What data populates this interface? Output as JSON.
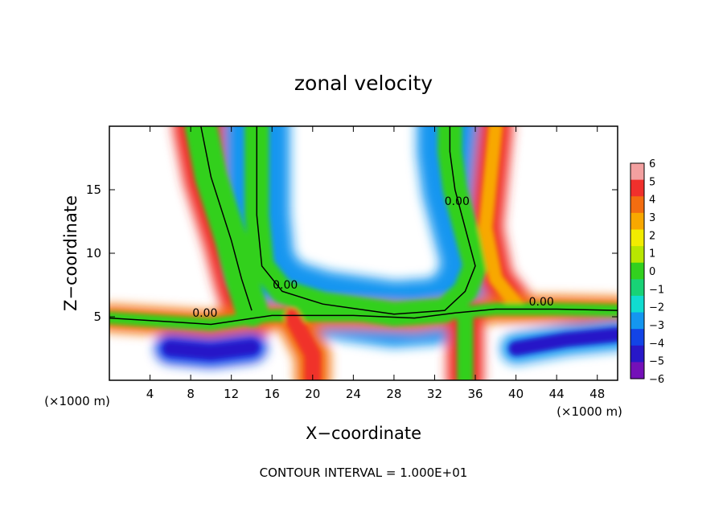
{
  "chart_data": {
    "type": "heatmap",
    "title": "zonal velocity",
    "xlabel": "X−coordinate",
    "ylabel": "Z−coordinate",
    "x_unit_label": "(×1000 m)",
    "y_unit_label": "(×1000 m)",
    "xlim": [
      0,
      50
    ],
    "ylim": [
      0,
      20
    ],
    "x_ticks": [
      4,
      8,
      12,
      16,
      20,
      24,
      28,
      32,
      36,
      40,
      44,
      48
    ],
    "y_ticks": [
      5,
      10,
      15
    ],
    "footer": "CONTOUR INTERVAL = 1.000E+01",
    "contour_labels": [
      {
        "text": "0.00",
        "x": 17.3,
        "y": 7.2
      },
      {
        "text": "0.00",
        "x": 9.4,
        "y": 5.0
      },
      {
        "text": "0.00",
        "x": 34.2,
        "y": 13.8
      },
      {
        "text": "0.00",
        "x": 42.5,
        "y": 5.9
      }
    ],
    "colorbar": {
      "levels": [
        "6",
        "5",
        "4",
        "3",
        "2",
        "1",
        "0",
        "−1",
        "−2",
        "−3",
        "−4",
        "−5",
        "−6"
      ],
      "colors": [
        "#f3a0a0",
        "#f0302c",
        "#f36d10",
        "#f8a800",
        "#f2ec00",
        "#b8e600",
        "#32d01e",
        "#18d276",
        "#10dcd0",
        "#1496f0",
        "#1244e6",
        "#2818c8",
        "#7410b8"
      ]
    },
    "bands": [
      {
        "name": "upper-left-plume",
        "path": [
          [
            9,
            20
          ],
          [
            10,
            16
          ],
          [
            12,
            11
          ],
          [
            13,
            8
          ],
          [
            14,
            5.5
          ]
        ],
        "outer_width": 5.5,
        "inner_width": 3.2,
        "outer_color": "#f0302c",
        "inner_color": "#32d01e"
      },
      {
        "name": "central-trunk",
        "path": [
          [
            14.5,
            20
          ],
          [
            14.5,
            13
          ],
          [
            15,
            9
          ],
          [
            17,
            7
          ],
          [
            21,
            6
          ],
          [
            28,
            5.2
          ],
          [
            33,
            5.5
          ],
          [
            35,
            7
          ],
          [
            36,
            9
          ],
          [
            35,
            12
          ],
          [
            34,
            15
          ],
          [
            33.5,
            18
          ],
          [
            33.5,
            20
          ]
        ],
        "outer_width": 6.5,
        "inner_width": 2.4,
        "outer_color": "#1496f0",
        "inner_color": "#32d01e"
      },
      {
        "name": "right-plume",
        "path": [
          [
            38,
            20
          ],
          [
            37.5,
            16
          ],
          [
            37,
            12
          ],
          [
            37.5,
            10
          ],
          [
            38,
            8
          ],
          [
            40,
            6
          ]
        ],
        "outer_width": 3.4,
        "inner_width": 1.4,
        "outer_color": "#f0302c",
        "inner_color": "#f8a800"
      },
      {
        "name": "low-level-shear",
        "path": [
          [
            0,
            4.9
          ],
          [
            6,
            4.6
          ],
          [
            10,
            4.4
          ],
          [
            16,
            5.1
          ],
          [
            24,
            5.1
          ],
          [
            30,
            4.9
          ],
          [
            34,
            5.3
          ],
          [
            38,
            5.6
          ],
          [
            44,
            5.6
          ],
          [
            50,
            5.5
          ]
        ],
        "outer_width": 2.6,
        "inner_width": 1.2,
        "outer_color": "#f36d10",
        "inner_color": "#32d01e"
      },
      {
        "name": "surface-jet-left",
        "path": [
          [
            6,
            2.5
          ],
          [
            10,
            2.2
          ],
          [
            14,
            2.6
          ]
        ],
        "outer_width": 3.0,
        "inner_width": 1.4,
        "outer_color": "#1244e6",
        "inner_color": "#2818c8"
      },
      {
        "name": "surface-jet-right",
        "path": [
          [
            40,
            2.5
          ],
          [
            45,
            3.2
          ],
          [
            50,
            3.6
          ]
        ],
        "outer_width": 3.0,
        "inner_width": 1.4,
        "outer_color": "#1496f0",
        "inner_color": "#2818c8"
      },
      {
        "name": "column-36",
        "path": [
          [
            35,
            5
          ],
          [
            35,
            0
          ]
        ],
        "outer_width": 3.6,
        "inner_width": 1.6,
        "outer_color": "#f0302c",
        "inner_color": "#32d01e"
      },
      {
        "name": "column-20",
        "path": [
          [
            18,
            5
          ],
          [
            20,
            2
          ],
          [
            20,
            0
          ]
        ],
        "outer_width": 3.4,
        "inner_width": 1.6,
        "outer_color": "#f36d10",
        "inner_color": "#f0302c"
      }
    ]
  }
}
